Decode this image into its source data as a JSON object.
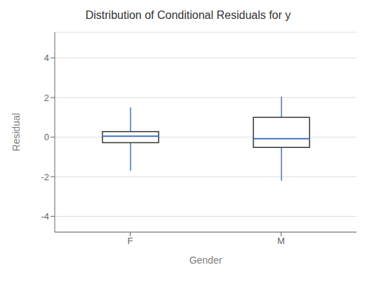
{
  "chart_data": {
    "type": "box",
    "title": "Distribution of Conditional Residuals for y",
    "xlabel": "Gender",
    "ylabel": "Residual",
    "categories": [
      "F",
      "M"
    ],
    "whislo": [
      -1.7,
      -2.2
    ],
    "q1": [
      -0.28,
      -0.52
    ],
    "med": [
      0.05,
      -0.08
    ],
    "q3": [
      0.28,
      1.0
    ],
    "whishi": [
      1.5,
      2.05
    ],
    "ylim": [
      -4.8,
      5.3
    ],
    "yticks": [
      -4,
      -2,
      0,
      2,
      4
    ],
    "color": "#4472c4",
    "grid": true
  }
}
